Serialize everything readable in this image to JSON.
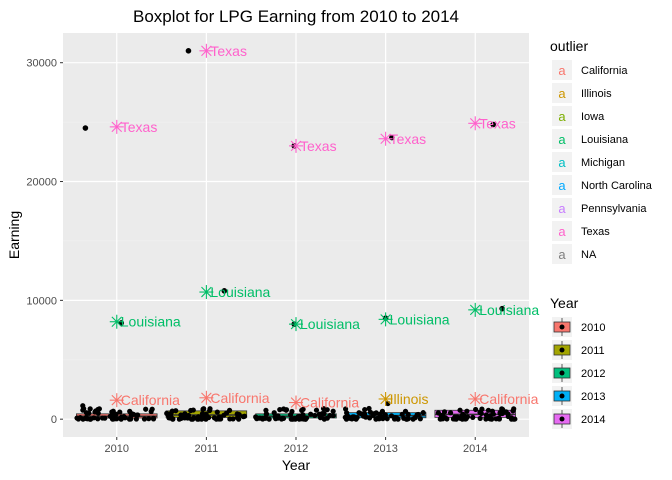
{
  "chart_data": {
    "type": "boxplot",
    "title": "Boxplot for LPG Earning from 2010 to 2014",
    "xlabel": "Year",
    "ylabel": "Earning",
    "categories": [
      "2010",
      "2011",
      "2012",
      "2013",
      "2014"
    ],
    "y_ticks": [
      0,
      10000,
      20000,
      30000
    ],
    "y_tick_labels": [
      "0",
      "10000",
      "20000",
      "30000"
    ],
    "ylim": [
      -1500,
      32500
    ],
    "grid": true,
    "legend_position": "right",
    "series": [
      {
        "name": "2010",
        "color": "#F8766D",
        "q1": 100,
        "median": 250,
        "q3": 450
      },
      {
        "name": "2011",
        "color": "#A3A500",
        "q1": 150,
        "median": 350,
        "q3": 700
      },
      {
        "name": "2012",
        "color": "#00BF7D",
        "q1": 100,
        "median": 250,
        "q3": 450
      },
      {
        "name": "2013",
        "color": "#00B0F6",
        "q1": 120,
        "median": 300,
        "q3": 550
      },
      {
        "name": "2014",
        "color": "#E76BF3",
        "q1": 150,
        "median": 400,
        "q3": 750
      }
    ],
    "points": [
      {
        "year": "2010",
        "offset": -0.35,
        "value": 24500
      },
      {
        "year": "2010",
        "offset": 0.05,
        "value": 8100
      },
      {
        "year": "2011",
        "offset": -0.2,
        "value": 31000
      },
      {
        "year": "2011",
        "offset": 0.2,
        "value": 10800
      },
      {
        "year": "2012",
        "offset": -0.02,
        "value": 23000
      },
      {
        "year": "2012",
        "offset": -0.02,
        "value": 8000
      },
      {
        "year": "2013",
        "offset": 0.07,
        "value": 23700
      },
      {
        "year": "2013",
        "offset": 0.0,
        "value": 8500
      },
      {
        "year": "2014",
        "offset": 0.2,
        "value": 24800
      },
      {
        "year": "2014",
        "offset": 0.3,
        "value": 9300
      }
    ],
    "outlier_labels": [
      {
        "year": "2010",
        "value": 24600,
        "text": "Texas",
        "group": "Texas"
      },
      {
        "year": "2010",
        "value": 8200,
        "text": "Louisiana",
        "group": "Louisiana"
      },
      {
        "year": "2010",
        "value": 1600,
        "text": "California",
        "group": "California"
      },
      {
        "year": "2011",
        "value": 31000,
        "text": "Texas",
        "group": "Texas"
      },
      {
        "year": "2011",
        "value": 10700,
        "text": "Louisiana",
        "group": "Louisiana"
      },
      {
        "year": "2011",
        "value": 1800,
        "text": "California",
        "group": "California"
      },
      {
        "year": "2012",
        "value": 23000,
        "text": "Texas",
        "group": "Texas"
      },
      {
        "year": "2012",
        "value": 8000,
        "text": "Louisiana",
        "group": "Louisiana"
      },
      {
        "year": "2012",
        "value": 1400,
        "text": "California",
        "group": "California"
      },
      {
        "year": "2013",
        "value": 23600,
        "text": "Texas",
        "group": "Texas"
      },
      {
        "year": "2013",
        "value": 8400,
        "text": "Louisiana",
        "group": "Louisiana"
      },
      {
        "year": "2013",
        "value": 1700,
        "text": "Illinois",
        "group": "Illinois"
      },
      {
        "year": "2014",
        "value": 24900,
        "text": "Texas",
        "group": "Texas"
      },
      {
        "year": "2014",
        "value": 9200,
        "text": "Louisiana",
        "group": "Louisiana"
      },
      {
        "year": "2014",
        "value": 1700,
        "text": "California",
        "group": "California"
      }
    ],
    "outlier_legend": {
      "title": "outlier",
      "entries": [
        {
          "label": "California",
          "color": "#F8766D"
        },
        {
          "label": "Illinois",
          "color": "#CD9600"
        },
        {
          "label": "Iowa",
          "color": "#7CAE00"
        },
        {
          "label": "Louisiana",
          "color": "#00BE67"
        },
        {
          "label": "Michigan",
          "color": "#00BFC4"
        },
        {
          "label": "North Carolina",
          "color": "#00A9FF"
        },
        {
          "label": "Pennsylvania",
          "color": "#C77CFF"
        },
        {
          "label": "Texas",
          "color": "#FF61CC"
        },
        {
          "label": "NA",
          "color": "#7F7F7F"
        }
      ]
    },
    "year_legend": {
      "title": "Year",
      "entries": [
        {
          "label": "2010",
          "color": "#F8766D"
        },
        {
          "label": "2011",
          "color": "#A3A500"
        },
        {
          "label": "2012",
          "color": "#00BF7D"
        },
        {
          "label": "2013",
          "color": "#00B0F6"
        },
        {
          "label": "2014",
          "color": "#E76BF3"
        }
      ]
    },
    "legend_key_glyph": "a"
  }
}
